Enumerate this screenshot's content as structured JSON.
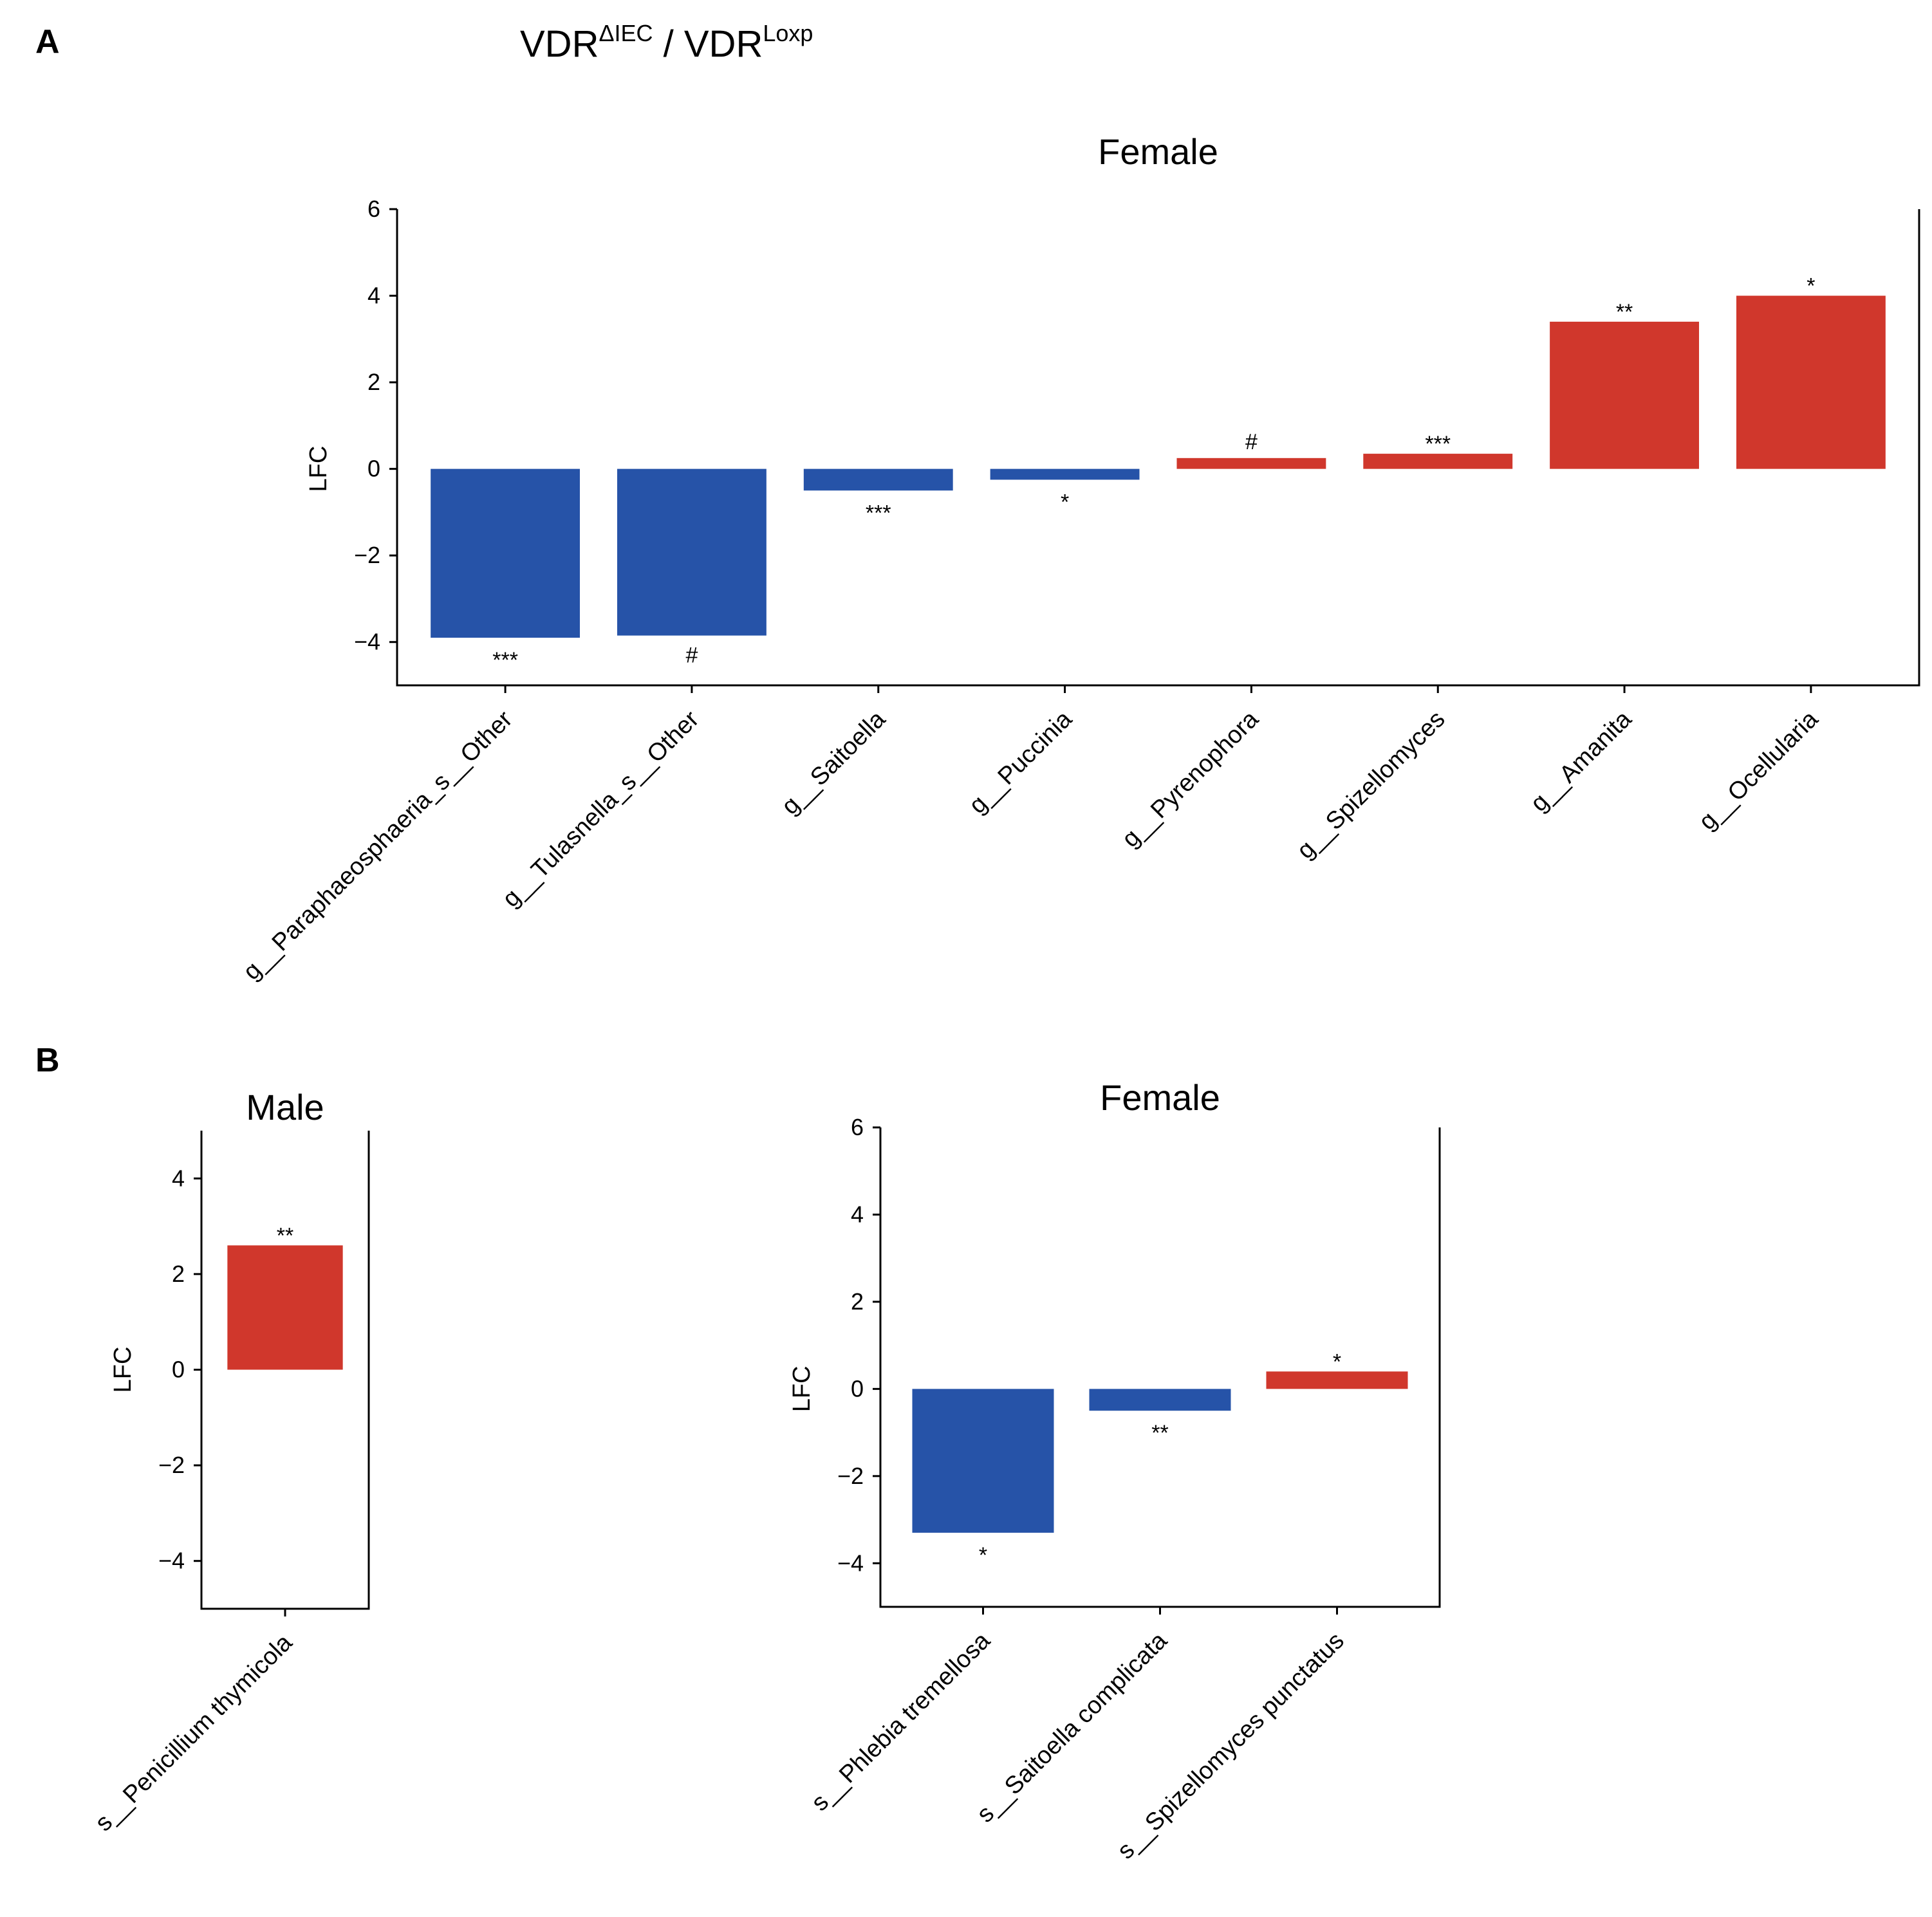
{
  "panels": {
    "a": "A",
    "b": "B"
  },
  "header": {
    "main1": "VDR",
    "sup1": "ΔIEC",
    "sep": " / ",
    "main2": "VDR",
    "sup2": "Loxp"
  },
  "colors": {
    "positive": "#d0372c",
    "negative": "#2653a8"
  },
  "chart_data": [
    {
      "id": "A-female",
      "type": "bar",
      "title": "Female",
      "ylabel": "LFC",
      "ylim": [
        -5,
        6
      ],
      "yticks": [
        6,
        4,
        2,
        0,
        -2,
        -4
      ],
      "ytick_labels": [
        "6",
        "4",
        "2",
        "0",
        "−2",
        "−4"
      ],
      "categories": [
        "g__Paraphaeosphaeria_s__Other",
        "g__Tulasnella_s__Other",
        "g__Saitoella",
        "g__Puccinia",
        "g__Pyrenophora",
        "g__Spizellomyces",
        "g__Amanita",
        "g__Ocellularia"
      ],
      "values": [
        -3.9,
        -3.85,
        -0.5,
        -0.25,
        0.25,
        0.35,
        3.4,
        4.0
      ],
      "significance": [
        "***",
        "#",
        "***",
        "*",
        "#",
        "***",
        "**",
        "*"
      ]
    },
    {
      "id": "B-male",
      "type": "bar",
      "title": "Male",
      "ylabel": "LFC",
      "ylim": [
        -5,
        5
      ],
      "yticks": [
        4,
        2,
        0,
        -2,
        -4
      ],
      "ytick_labels": [
        "4",
        "2",
        "0",
        "−2",
        "−4"
      ],
      "categories": [
        "s__Penicillium thymicola"
      ],
      "values": [
        2.6
      ],
      "significance": [
        "**"
      ]
    },
    {
      "id": "B-female",
      "type": "bar",
      "title": "Female",
      "ylabel": "LFC",
      "ylim": [
        -5,
        6
      ],
      "yticks": [
        6,
        4,
        2,
        0,
        -2,
        -4
      ],
      "ytick_labels": [
        "6",
        "4",
        "2",
        "0",
        "−2",
        "−4"
      ],
      "categories": [
        "s__Phlebia tremellosa",
        "s__Saitoella complicata",
        "s__Spizellomyces punctatus"
      ],
      "values": [
        -3.3,
        -0.5,
        0.4
      ],
      "significance": [
        "*",
        "**",
        "*"
      ]
    }
  ]
}
